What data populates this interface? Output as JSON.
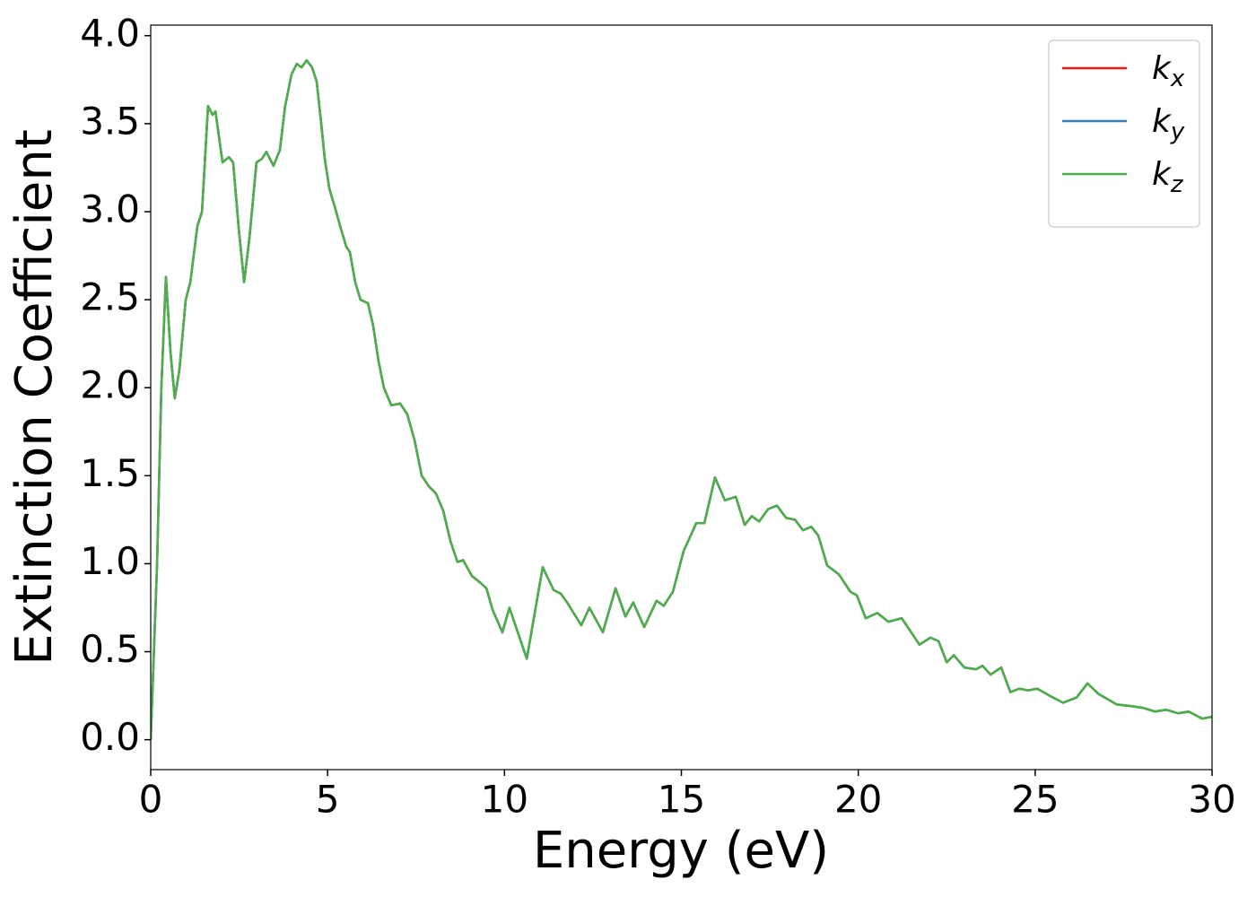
{
  "chart_data": {
    "type": "line",
    "xlabel": "Energy (eV)",
    "ylabel": "Extinction Coefficient",
    "xlim": [
      0,
      30
    ],
    "ylim": [
      -0.17,
      4.06
    ],
    "xticks": [
      0,
      5,
      10,
      15,
      20,
      25,
      30
    ],
    "yticks": [
      {
        "value": 0,
        "label": "0.0"
      },
      0.5,
      {
        "value": 1,
        "label": "1.0"
      },
      1.5,
      {
        "value": 2,
        "label": "2.0"
      },
      2.5,
      {
        "value": 3,
        "label": "3.0"
      },
      3.5,
      {
        "value": 4,
        "label": "4.0"
      }
    ],
    "grid": false,
    "legend": "upper right",
    "x": [
      0,
      0.18,
      0.3,
      0.43,
      0.56,
      0.68,
      0.81,
      0.99,
      1.12,
      1.32,
      1.45,
      1.62,
      1.75,
      1.83,
      2.03,
      2.21,
      2.33,
      2.49,
      2.64,
      2.79,
      2.99,
      3.14,
      3.27,
      3.47,
      3.65,
      3.8,
      3.98,
      4.13,
      4.26,
      4.41,
      4.56,
      4.69,
      4.82,
      4.92,
      5.05,
      5.2,
      5.38,
      5.53,
      5.63,
      5.78,
      5.93,
      6.14,
      6.29,
      6.44,
      6.59,
      6.8,
      7.05,
      7.25,
      7.46,
      7.66,
      7.86,
      8.06,
      8.27,
      8.47,
      8.67,
      8.83,
      9.08,
      9.33,
      9.49,
      9.66,
      9.94,
      10.14,
      10.63,
      11.08,
      11.39,
      11.59,
      11.77,
      12.17,
      12.4,
      12.78,
      13.14,
      13.42,
      13.64,
      13.95,
      14.3,
      14.5,
      14.76,
      15.06,
      15.42,
      15.65,
      15.95,
      16.23,
      16.54,
      16.79,
      16.99,
      17.2,
      17.45,
      17.7,
      17.96,
      18.21,
      18.44,
      18.67,
      18.87,
      19.12,
      19.45,
      19.78,
      19.96,
      20.21,
      20.54,
      20.85,
      21.23,
      21.73,
      22.04,
      22.27,
      22.5,
      22.7,
      23.0,
      23.33,
      23.51,
      23.74,
      24.04,
      24.3,
      24.55,
      24.8,
      25.06,
      25.41,
      25.79,
      26.17,
      26.48,
      26.79,
      27.31,
      27.75,
      28.07,
      28.38,
      28.71,
      29.04,
      29.34,
      29.72,
      30
    ],
    "series": [
      {
        "name": "kx",
        "color": "#e41a1c",
        "values": [
          0,
          1.0,
          2.0,
          2.63,
          2.2,
          1.94,
          2.1,
          2.5,
          2.6,
          2.92,
          3.0,
          3.6,
          3.55,
          3.57,
          3.28,
          3.31,
          3.28,
          2.9,
          2.6,
          2.85,
          3.28,
          3.3,
          3.34,
          3.26,
          3.35,
          3.6,
          3.78,
          3.84,
          3.82,
          3.86,
          3.82,
          3.74,
          3.5,
          3.3,
          3.13,
          3.03,
          2.9,
          2.8,
          2.77,
          2.6,
          2.5,
          2.48,
          2.35,
          2.15,
          2.0,
          1.9,
          1.91,
          1.85,
          1.7,
          1.5,
          1.44,
          1.4,
          1.3,
          1.13,
          1.01,
          1.02,
          0.93,
          0.89,
          0.86,
          0.74,
          0.61,
          0.75,
          0.46,
          0.98,
          0.85,
          0.83,
          0.78,
          0.65,
          0.75,
          0.61,
          0.86,
          0.7,
          0.78,
          0.64,
          0.79,
          0.76,
          0.84,
          1.07,
          1.23,
          1.23,
          1.49,
          1.36,
          1.38,
          1.22,
          1.27,
          1.24,
          1.31,
          1.33,
          1.26,
          1.25,
          1.19,
          1.21,
          1.16,
          0.99,
          0.94,
          0.84,
          0.82,
          0.69,
          0.72,
          0.67,
          0.69,
          0.54,
          0.58,
          0.56,
          0.44,
          0.48,
          0.41,
          0.4,
          0.42,
          0.37,
          0.41,
          0.27,
          0.29,
          0.28,
          0.29,
          0.25,
          0.21,
          0.24,
          0.32,
          0.26,
          0.2,
          0.19,
          0.18,
          0.16,
          0.17,
          0.15,
          0.16,
          0.12,
          0.13
        ]
      },
      {
        "name": "ky",
        "color": "#377eb8",
        "values": [
          0,
          1.0,
          2.0,
          2.63,
          2.2,
          1.94,
          2.1,
          2.5,
          2.6,
          2.92,
          3.0,
          3.6,
          3.55,
          3.57,
          3.28,
          3.31,
          3.28,
          2.9,
          2.6,
          2.85,
          3.28,
          3.3,
          3.34,
          3.26,
          3.35,
          3.6,
          3.78,
          3.84,
          3.82,
          3.86,
          3.82,
          3.74,
          3.5,
          3.3,
          3.13,
          3.03,
          2.9,
          2.8,
          2.77,
          2.6,
          2.5,
          2.48,
          2.35,
          2.15,
          2.0,
          1.9,
          1.91,
          1.85,
          1.7,
          1.5,
          1.44,
          1.4,
          1.3,
          1.13,
          1.01,
          1.02,
          0.93,
          0.89,
          0.86,
          0.74,
          0.61,
          0.75,
          0.46,
          0.98,
          0.85,
          0.83,
          0.78,
          0.65,
          0.75,
          0.61,
          0.86,
          0.7,
          0.78,
          0.64,
          0.79,
          0.76,
          0.84,
          1.07,
          1.23,
          1.23,
          1.49,
          1.36,
          1.38,
          1.22,
          1.27,
          1.24,
          1.31,
          1.33,
          1.26,
          1.25,
          1.19,
          1.21,
          1.16,
          0.99,
          0.94,
          0.84,
          0.82,
          0.69,
          0.72,
          0.67,
          0.69,
          0.54,
          0.58,
          0.56,
          0.44,
          0.48,
          0.41,
          0.4,
          0.42,
          0.37,
          0.41,
          0.27,
          0.29,
          0.28,
          0.29,
          0.25,
          0.21,
          0.24,
          0.32,
          0.26,
          0.2,
          0.19,
          0.18,
          0.16,
          0.17,
          0.15,
          0.16,
          0.12,
          0.13
        ]
      },
      {
        "name": "kz",
        "color": "#4daf4a",
        "values": [
          0,
          1.0,
          2.0,
          2.63,
          2.2,
          1.94,
          2.1,
          2.5,
          2.6,
          2.92,
          3.0,
          3.6,
          3.55,
          3.57,
          3.28,
          3.31,
          3.28,
          2.9,
          2.6,
          2.85,
          3.28,
          3.3,
          3.34,
          3.26,
          3.35,
          3.6,
          3.78,
          3.84,
          3.82,
          3.86,
          3.82,
          3.74,
          3.5,
          3.3,
          3.13,
          3.03,
          2.9,
          2.8,
          2.77,
          2.6,
          2.5,
          2.48,
          2.35,
          2.15,
          2.0,
          1.9,
          1.91,
          1.85,
          1.7,
          1.5,
          1.44,
          1.4,
          1.3,
          1.13,
          1.01,
          1.02,
          0.93,
          0.89,
          0.86,
          0.74,
          0.61,
          0.75,
          0.46,
          0.98,
          0.85,
          0.83,
          0.78,
          0.65,
          0.75,
          0.61,
          0.86,
          0.7,
          0.78,
          0.64,
          0.79,
          0.76,
          0.84,
          1.07,
          1.23,
          1.23,
          1.49,
          1.36,
          1.38,
          1.22,
          1.27,
          1.24,
          1.31,
          1.33,
          1.26,
          1.25,
          1.19,
          1.21,
          1.16,
          0.99,
          0.94,
          0.84,
          0.82,
          0.69,
          0.72,
          0.67,
          0.69,
          0.54,
          0.58,
          0.56,
          0.44,
          0.48,
          0.41,
          0.4,
          0.42,
          0.37,
          0.41,
          0.27,
          0.29,
          0.28,
          0.29,
          0.25,
          0.21,
          0.24,
          0.32,
          0.26,
          0.2,
          0.19,
          0.18,
          0.16,
          0.17,
          0.15,
          0.16,
          0.12,
          0.13
        ]
      }
    ]
  }
}
